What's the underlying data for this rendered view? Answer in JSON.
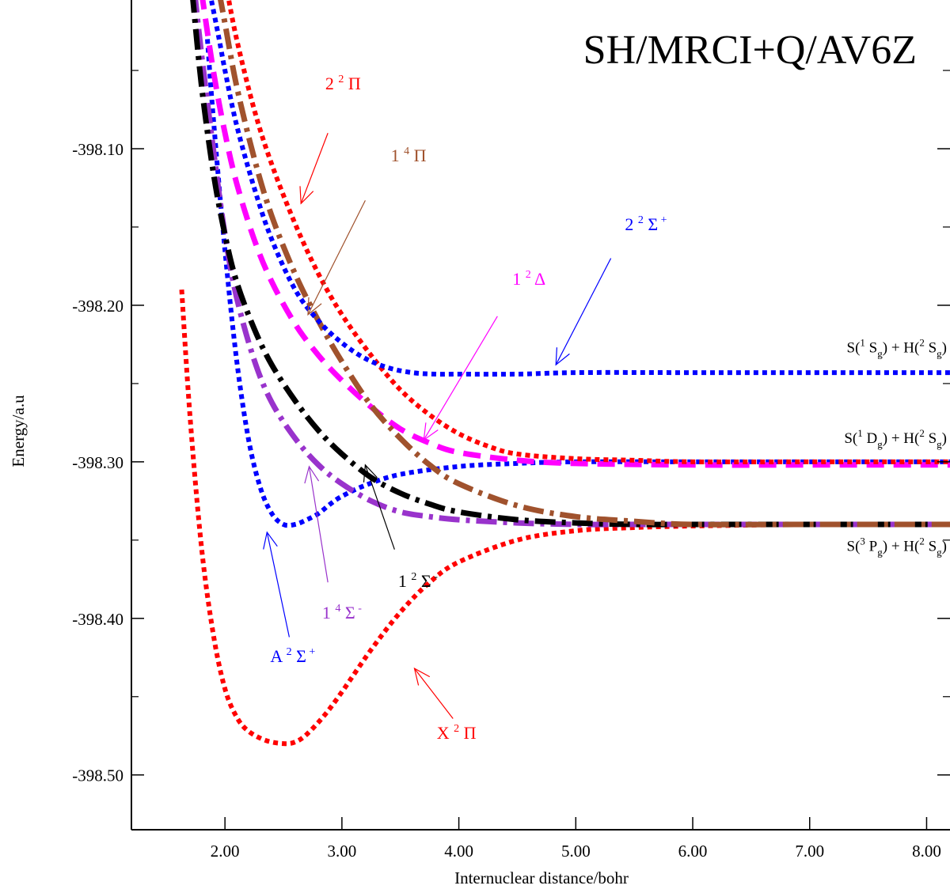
{
  "chart_data": {
    "type": "line",
    "title": "SH/MRCI+Q/AV6Z",
    "xlabel": "Internuclear distance/bohr",
    "ylabel": "Energy/a.u",
    "xlim": [
      1.2,
      8.2
    ],
    "ylim": [
      -398.535,
      -398.005
    ],
    "x_ticks": [
      2,
      3,
      4,
      5,
      6,
      7,
      8
    ],
    "x_tick_labels": [
      "2.00",
      "3.00",
      "4.00",
      "5.00",
      "6.00",
      "7.00",
      "8.00"
    ],
    "y_ticks": [
      -398.1,
      -398.2,
      -398.3,
      -398.4,
      -398.5
    ],
    "y_tick_labels": [
      "-398.10",
      "-398.20",
      "-398.30",
      "-398.40",
      "-398.50"
    ],
    "y_minor_ticks": [
      -398.05,
      -398.15,
      -398.25,
      -398.35,
      -398.45
    ],
    "grid": false,
    "series": [
      {
        "name": "X 2Π",
        "color": "#ff0000",
        "style": "dotted",
        "x": [
          1.63,
          1.7,
          1.8,
          1.9,
          2.0,
          2.1,
          2.2,
          2.35,
          2.5,
          2.6,
          2.7,
          2.85,
          3.0,
          3.25,
          3.5,
          3.75,
          4.0,
          4.5,
          5.0,
          5.5,
          6.0,
          7.0,
          8.2
        ],
        "y": [
          -398.19,
          -398.27,
          -398.355,
          -398.41,
          -398.445,
          -398.463,
          -398.472,
          -398.478,
          -398.48,
          -398.479,
          -398.474,
          -398.462,
          -398.447,
          -398.42,
          -398.396,
          -398.377,
          -398.364,
          -398.35,
          -398.344,
          -398.342,
          -398.341,
          -398.34,
          -398.34
        ]
      },
      {
        "name": "A 2Σ+",
        "color": "#0000ff",
        "style": "dotted",
        "x": [
          1.85,
          1.9,
          2.0,
          2.1,
          2.2,
          2.3,
          2.4,
          2.5,
          2.6,
          2.7,
          2.8,
          2.9,
          3.0,
          3.2,
          3.5,
          4.0,
          4.5,
          5.0,
          6.0,
          7.0,
          8.2
        ],
        "y": [
          -398.03,
          -398.08,
          -398.165,
          -398.235,
          -398.285,
          -398.316,
          -398.333,
          -398.34,
          -398.34,
          -398.337,
          -398.333,
          -398.327,
          -398.322,
          -398.315,
          -398.308,
          -398.303,
          -398.301,
          -398.3,
          -398.3,
          -398.3,
          -398.3
        ]
      },
      {
        "name": "1 4Σ-",
        "color": "#9933cc",
        "style": "dashdot",
        "x": [
          1.74,
          1.8,
          1.9,
          2.0,
          2.1,
          2.25,
          2.4,
          2.6,
          2.8,
          3.0,
          3.25,
          3.5,
          3.75,
          4.0,
          4.5,
          5.0,
          5.5,
          6.0,
          7.0,
          8.2
        ],
        "y": [
          -398.0,
          -398.04,
          -398.1,
          -398.155,
          -398.195,
          -398.235,
          -398.262,
          -398.285,
          -398.302,
          -398.314,
          -398.325,
          -398.332,
          -398.335,
          -398.337,
          -398.339,
          -398.34,
          -398.34,
          -398.34,
          -398.34,
          -398.34
        ]
      },
      {
        "name": "1 2Σ-",
        "color": "#000000",
        "style": "dashdot",
        "x": [
          1.72,
          1.8,
          1.9,
          2.0,
          2.1,
          2.25,
          2.4,
          2.6,
          2.8,
          3.0,
          3.25,
          3.5,
          3.75,
          4.0,
          4.5,
          5.0,
          5.5,
          6.0,
          7.0,
          8.2
        ],
        "y": [
          -398.0,
          -398.06,
          -398.115,
          -398.155,
          -398.185,
          -398.215,
          -398.238,
          -398.261,
          -398.28,
          -398.295,
          -398.31,
          -398.32,
          -398.327,
          -398.332,
          -398.337,
          -398.339,
          -398.34,
          -398.34,
          -398.34,
          -398.34
        ]
      },
      {
        "name": "1 2Δ",
        "color": "#ff00ff",
        "style": "dashed",
        "x": [
          1.8,
          1.9,
          2.0,
          2.1,
          2.25,
          2.4,
          2.6,
          2.8,
          3.0,
          3.25,
          3.5,
          3.75,
          4.0,
          4.5,
          5.0,
          6.0,
          7.0,
          8.2
        ],
        "y": [
          -398.0,
          -398.05,
          -398.09,
          -398.122,
          -398.158,
          -398.185,
          -398.212,
          -398.232,
          -398.248,
          -398.265,
          -398.279,
          -398.288,
          -398.294,
          -398.299,
          -398.301,
          -398.302,
          -398.302,
          -398.302
        ]
      },
      {
        "name": "1 4Π",
        "color": "#a0522d",
        "style": "dashdot",
        "x": [
          1.95,
          2.0,
          2.1,
          2.25,
          2.4,
          2.6,
          2.8,
          3.0,
          3.25,
          3.5,
          3.75,
          4.0,
          4.5,
          5.0,
          5.5,
          6.0,
          7.0,
          8.2
        ],
        "y": [
          -398.0,
          -398.02,
          -398.06,
          -398.106,
          -398.143,
          -398.18,
          -398.21,
          -398.236,
          -398.264,
          -398.285,
          -398.302,
          -398.314,
          -398.328,
          -398.335,
          -398.338,
          -398.34,
          -398.34,
          -398.34
        ]
      },
      {
        "name": "2 2Π",
        "color": "#ff0000",
        "style": "dotted",
        "x": [
          2.02,
          2.1,
          2.25,
          2.4,
          2.6,
          2.8,
          3.0,
          3.25,
          3.5,
          3.75,
          4.0,
          4.25,
          4.5,
          5.0,
          5.5,
          6.0,
          7.0,
          8.2
        ],
        "y": [
          -398.0,
          -398.03,
          -398.075,
          -398.11,
          -398.148,
          -398.18,
          -398.206,
          -398.232,
          -398.254,
          -398.27,
          -398.282,
          -398.29,
          -398.295,
          -398.298,
          -398.299,
          -398.3,
          -398.3,
          -398.3
        ]
      },
      {
        "name": "2 2Σ+",
        "color": "#0000ff",
        "style": "dotted",
        "x": [
          1.87,
          1.95,
          2.0,
          2.1,
          2.25,
          2.4,
          2.6,
          2.8,
          3.0,
          3.2,
          3.4,
          3.6,
          3.8,
          4.0,
          4.5,
          5.0,
          6.0,
          7.0,
          8.2
        ],
        "y": [
          -398.0,
          -398.03,
          -398.05,
          -398.085,
          -398.125,
          -398.158,
          -398.19,
          -398.21,
          -398.224,
          -398.234,
          -398.24,
          -398.243,
          -398.244,
          -398.244,
          -398.244,
          -398.243,
          -398.243,
          -398.243,
          -398.243
        ]
      }
    ],
    "annotations": [
      {
        "label_parts": [
          "2",
          "2",
          "Π",
          ""
        ],
        "color": "#ff0000",
        "text_x": 3.01,
        "text_y": -398.062,
        "arrow_from": [
          2.88,
          -398.09
        ],
        "arrow_to": [
          2.65,
          -398.135
        ]
      },
      {
        "label_parts": [
          "1",
          "4",
          "Π",
          ""
        ],
        "color": "#a0522d",
        "text_x": 3.57,
        "text_y": -398.108,
        "arrow_from": [
          3.2,
          -398.133
        ],
        "arrow_to": [
          2.71,
          -398.206
        ]
      },
      {
        "label_parts": [
          "2",
          "2",
          "Σ",
          "+"
        ],
        "color": "#0000ff",
        "text_x": 5.6,
        "text_y": -398.152,
        "arrow_from": [
          5.3,
          -398.17
        ],
        "arrow_to": [
          4.83,
          -398.238
        ]
      },
      {
        "label_parts": [
          "1",
          "2",
          "Δ",
          ""
        ],
        "color": "#ff00ff",
        "text_x": 4.6,
        "text_y": -398.187,
        "arrow_from": [
          4.33,
          -398.207
        ],
        "arrow_to": [
          3.7,
          -398.286
        ]
      },
      {
        "label_parts": [
          "1",
          "2",
          "Σ",
          "-"
        ],
        "color": "#000000",
        "text_x": 3.65,
        "text_y": -398.38,
        "arrow_from": [
          3.45,
          -398.356
        ],
        "arrow_to": [
          3.2,
          -398.302
        ]
      },
      {
        "label_parts": [
          "1",
          "4",
          "Σ",
          "-"
        ],
        "color": "#9933cc",
        "text_x": 3.0,
        "text_y": -398.4,
        "arrow_from": [
          2.88,
          -398.377
        ],
        "arrow_to": [
          2.72,
          -398.303
        ]
      },
      {
        "label_parts": [
          "A",
          "2",
          "Σ",
          "+"
        ],
        "color": "#0000ff",
        "text_x": 2.58,
        "text_y": -398.428,
        "arrow_from": [
          2.55,
          -398.412
        ],
        "arrow_to": [
          2.36,
          -398.345
        ]
      },
      {
        "label_parts": [
          "X",
          "2",
          "Π",
          ""
        ],
        "color": "#ff0000",
        "text_x": 3.98,
        "text_y": -398.477,
        "arrow_from": [
          3.95,
          -398.464
        ],
        "arrow_to": [
          3.62,
          -398.432
        ]
      }
    ],
    "asymptotes": [
      {
        "parts": [
          "S(",
          "1",
          " S",
          "g",
          ") + H(",
          "2",
          " S",
          "g",
          ")"
        ],
        "y": -398.23
      },
      {
        "parts": [
          "S(",
          "1",
          " D",
          "g",
          ") + H(",
          "2",
          " S",
          "g",
          ")"
        ],
        "y": -398.288
      },
      {
        "parts": [
          "S(",
          "3",
          " P",
          "g",
          ") + H(",
          "2",
          " S",
          "g",
          ")"
        ],
        "y": -398.357
      }
    ]
  }
}
